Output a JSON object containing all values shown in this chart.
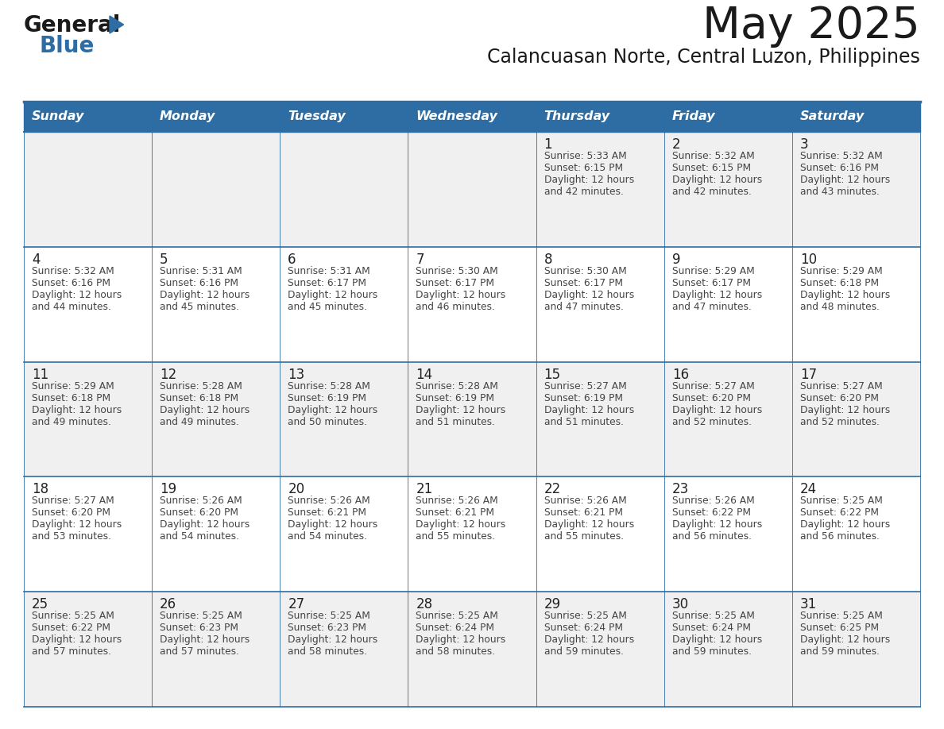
{
  "title": "May 2025",
  "subtitle": "Calancuasan Norte, Central Luzon, Philippines",
  "header_bg": "#2E6DA4",
  "header_text_color": "#FFFFFF",
  "day_names": [
    "Sunday",
    "Monday",
    "Tuesday",
    "Wednesday",
    "Thursday",
    "Friday",
    "Saturday"
  ],
  "row_bg_odd": "#F0F0F0",
  "row_bg_even": "#FFFFFF",
  "cell_text_color": "#444444",
  "date_text_color": "#222222",
  "line_color": "#2E6DA4",
  "logo_color1": "#1a1a1a",
  "logo_color2": "#2E6DA4",
  "calendar": [
    [
      {
        "date": "",
        "sunrise": "",
        "sunset": "",
        "daylight": ""
      },
      {
        "date": "",
        "sunrise": "",
        "sunset": "",
        "daylight": ""
      },
      {
        "date": "",
        "sunrise": "",
        "sunset": "",
        "daylight": ""
      },
      {
        "date": "",
        "sunrise": "",
        "sunset": "",
        "daylight": ""
      },
      {
        "date": "1",
        "sunrise": "Sunrise: 5:33 AM",
        "sunset": "Sunset: 6:15 PM",
        "daylight": "Daylight: 12 hours\nand 42 minutes."
      },
      {
        "date": "2",
        "sunrise": "Sunrise: 5:32 AM",
        "sunset": "Sunset: 6:15 PM",
        "daylight": "Daylight: 12 hours\nand 42 minutes."
      },
      {
        "date": "3",
        "sunrise": "Sunrise: 5:32 AM",
        "sunset": "Sunset: 6:16 PM",
        "daylight": "Daylight: 12 hours\nand 43 minutes."
      }
    ],
    [
      {
        "date": "4",
        "sunrise": "Sunrise: 5:32 AM",
        "sunset": "Sunset: 6:16 PM",
        "daylight": "Daylight: 12 hours\nand 44 minutes."
      },
      {
        "date": "5",
        "sunrise": "Sunrise: 5:31 AM",
        "sunset": "Sunset: 6:16 PM",
        "daylight": "Daylight: 12 hours\nand 45 minutes."
      },
      {
        "date": "6",
        "sunrise": "Sunrise: 5:31 AM",
        "sunset": "Sunset: 6:17 PM",
        "daylight": "Daylight: 12 hours\nand 45 minutes."
      },
      {
        "date": "7",
        "sunrise": "Sunrise: 5:30 AM",
        "sunset": "Sunset: 6:17 PM",
        "daylight": "Daylight: 12 hours\nand 46 minutes."
      },
      {
        "date": "8",
        "sunrise": "Sunrise: 5:30 AM",
        "sunset": "Sunset: 6:17 PM",
        "daylight": "Daylight: 12 hours\nand 47 minutes."
      },
      {
        "date": "9",
        "sunrise": "Sunrise: 5:29 AM",
        "sunset": "Sunset: 6:17 PM",
        "daylight": "Daylight: 12 hours\nand 47 minutes."
      },
      {
        "date": "10",
        "sunrise": "Sunrise: 5:29 AM",
        "sunset": "Sunset: 6:18 PM",
        "daylight": "Daylight: 12 hours\nand 48 minutes."
      }
    ],
    [
      {
        "date": "11",
        "sunrise": "Sunrise: 5:29 AM",
        "sunset": "Sunset: 6:18 PM",
        "daylight": "Daylight: 12 hours\nand 49 minutes."
      },
      {
        "date": "12",
        "sunrise": "Sunrise: 5:28 AM",
        "sunset": "Sunset: 6:18 PM",
        "daylight": "Daylight: 12 hours\nand 49 minutes."
      },
      {
        "date": "13",
        "sunrise": "Sunrise: 5:28 AM",
        "sunset": "Sunset: 6:19 PM",
        "daylight": "Daylight: 12 hours\nand 50 minutes."
      },
      {
        "date": "14",
        "sunrise": "Sunrise: 5:28 AM",
        "sunset": "Sunset: 6:19 PM",
        "daylight": "Daylight: 12 hours\nand 51 minutes."
      },
      {
        "date": "15",
        "sunrise": "Sunrise: 5:27 AM",
        "sunset": "Sunset: 6:19 PM",
        "daylight": "Daylight: 12 hours\nand 51 minutes."
      },
      {
        "date": "16",
        "sunrise": "Sunrise: 5:27 AM",
        "sunset": "Sunset: 6:20 PM",
        "daylight": "Daylight: 12 hours\nand 52 minutes."
      },
      {
        "date": "17",
        "sunrise": "Sunrise: 5:27 AM",
        "sunset": "Sunset: 6:20 PM",
        "daylight": "Daylight: 12 hours\nand 52 minutes."
      }
    ],
    [
      {
        "date": "18",
        "sunrise": "Sunrise: 5:27 AM",
        "sunset": "Sunset: 6:20 PM",
        "daylight": "Daylight: 12 hours\nand 53 minutes."
      },
      {
        "date": "19",
        "sunrise": "Sunrise: 5:26 AM",
        "sunset": "Sunset: 6:20 PM",
        "daylight": "Daylight: 12 hours\nand 54 minutes."
      },
      {
        "date": "20",
        "sunrise": "Sunrise: 5:26 AM",
        "sunset": "Sunset: 6:21 PM",
        "daylight": "Daylight: 12 hours\nand 54 minutes."
      },
      {
        "date": "21",
        "sunrise": "Sunrise: 5:26 AM",
        "sunset": "Sunset: 6:21 PM",
        "daylight": "Daylight: 12 hours\nand 55 minutes."
      },
      {
        "date": "22",
        "sunrise": "Sunrise: 5:26 AM",
        "sunset": "Sunset: 6:21 PM",
        "daylight": "Daylight: 12 hours\nand 55 minutes."
      },
      {
        "date": "23",
        "sunrise": "Sunrise: 5:26 AM",
        "sunset": "Sunset: 6:22 PM",
        "daylight": "Daylight: 12 hours\nand 56 minutes."
      },
      {
        "date": "24",
        "sunrise": "Sunrise: 5:25 AM",
        "sunset": "Sunset: 6:22 PM",
        "daylight": "Daylight: 12 hours\nand 56 minutes."
      }
    ],
    [
      {
        "date": "25",
        "sunrise": "Sunrise: 5:25 AM",
        "sunset": "Sunset: 6:22 PM",
        "daylight": "Daylight: 12 hours\nand 57 minutes."
      },
      {
        "date": "26",
        "sunrise": "Sunrise: 5:25 AM",
        "sunset": "Sunset: 6:23 PM",
        "daylight": "Daylight: 12 hours\nand 57 minutes."
      },
      {
        "date": "27",
        "sunrise": "Sunrise: 5:25 AM",
        "sunset": "Sunset: 6:23 PM",
        "daylight": "Daylight: 12 hours\nand 58 minutes."
      },
      {
        "date": "28",
        "sunrise": "Sunrise: 5:25 AM",
        "sunset": "Sunset: 6:24 PM",
        "daylight": "Daylight: 12 hours\nand 58 minutes."
      },
      {
        "date": "29",
        "sunrise": "Sunrise: 5:25 AM",
        "sunset": "Sunset: 6:24 PM",
        "daylight": "Daylight: 12 hours\nand 59 minutes."
      },
      {
        "date": "30",
        "sunrise": "Sunrise: 5:25 AM",
        "sunset": "Sunset: 6:24 PM",
        "daylight": "Daylight: 12 hours\nand 59 minutes."
      },
      {
        "date": "31",
        "sunrise": "Sunrise: 5:25 AM",
        "sunset": "Sunset: 6:25 PM",
        "daylight": "Daylight: 12 hours\nand 59 minutes."
      }
    ]
  ]
}
